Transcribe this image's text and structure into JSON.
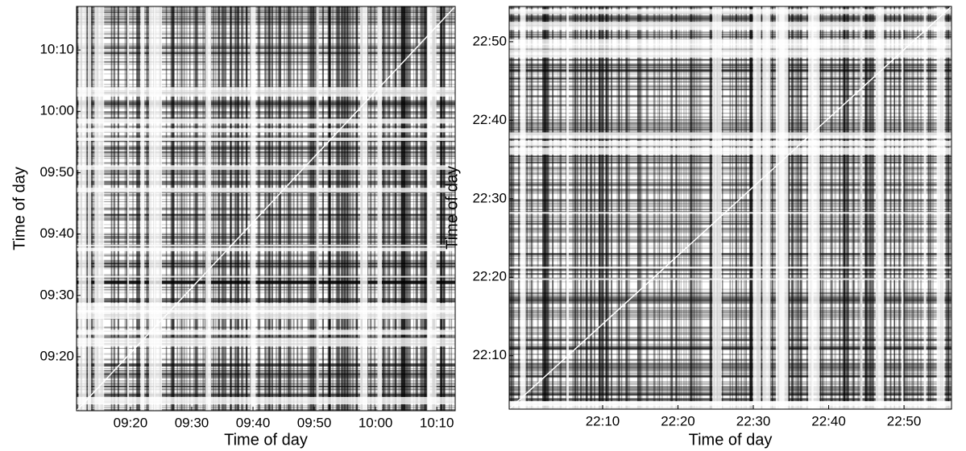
{
  "chart_data": [
    {
      "type": "recurrence",
      "xlabel": "Time of day",
      "ylabel": "Time of day",
      "xlim": [
        551.2,
        613
      ],
      "ylim": [
        551.2,
        617.1
      ],
      "xticks": [
        {
          "value": 560,
          "label": "09:20"
        },
        {
          "value": 570,
          "label": "09:30"
        },
        {
          "value": 580,
          "label": "09:40"
        },
        {
          "value": 590,
          "label": "09:50"
        },
        {
          "value": 600,
          "label": "10:00"
        },
        {
          "value": 610,
          "label": "10:10"
        }
      ],
      "yticks": [
        {
          "value": 560,
          "label": "09:20"
        },
        {
          "value": 570,
          "label": "09:30"
        },
        {
          "value": 580,
          "label": "09:40"
        },
        {
          "value": 590,
          "label": "09:50"
        },
        {
          "value": 600,
          "label": "10:00"
        },
        {
          "value": 610,
          "label": "10:10"
        }
      ]
    },
    {
      "type": "recurrence",
      "xlabel": "Time of day",
      "ylabel": "Time of day",
      "xlim": [
        1317.6,
        1376.3
      ],
      "ylim": [
        1323.2,
        1374.5
      ],
      "xticks": [
        {
          "value": 1330,
          "label": "22:10"
        },
        {
          "value": 1340,
          "label": "22:20"
        },
        {
          "value": 1350,
          "label": "22:30"
        },
        {
          "value": 1360,
          "label": "22:40"
        },
        {
          "value": 1370,
          "label": "22:50"
        }
      ],
      "yticks": [
        {
          "value": 1330,
          "label": "22:10"
        },
        {
          "value": 1340,
          "label": "22:20"
        },
        {
          "value": 1350,
          "label": "22:30"
        },
        {
          "value": 1360,
          "label": "22:40"
        },
        {
          "value": 1370,
          "label": "22:50"
        }
      ]
    }
  ]
}
